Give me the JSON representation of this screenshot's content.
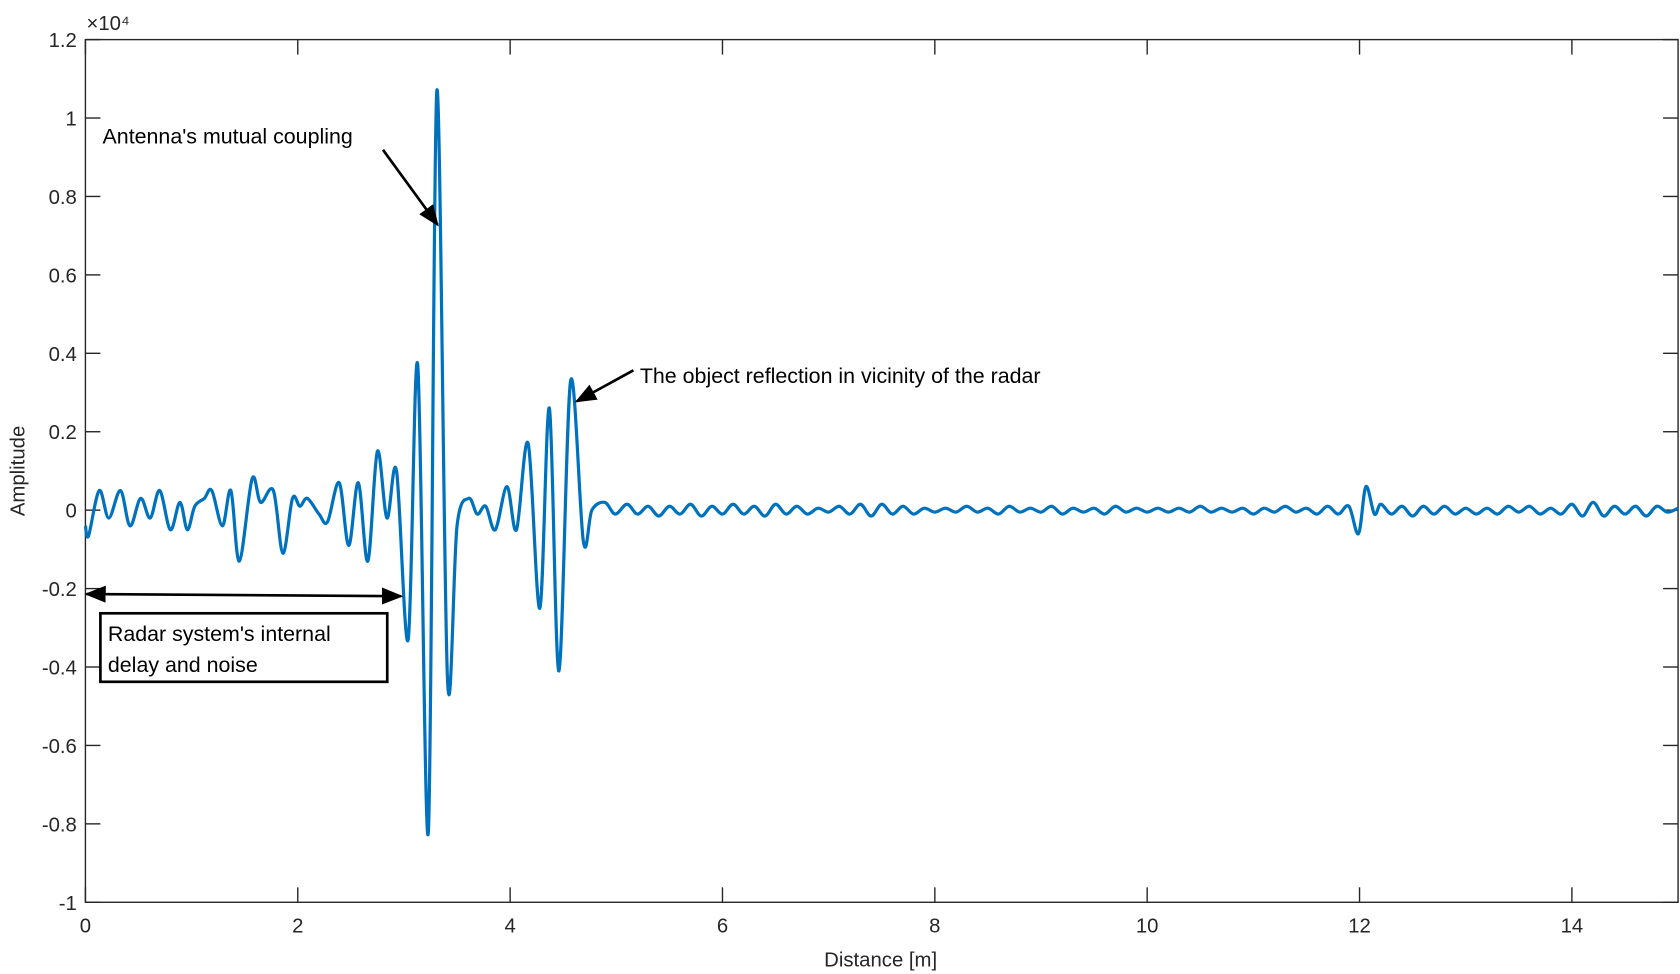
{
  "chart_data": {
    "type": "line",
    "xlabel": "Distance [m]",
    "ylabel": "Amplitude",
    "y_scale_label": "×10⁴",
    "xlim": [
      0,
      15
    ],
    "xticks": [
      0,
      2,
      4,
      6,
      8,
      10,
      12,
      14
    ],
    "ylim": [
      -1,
      1.2
    ],
    "yticks": [
      -1,
      -0.8,
      -0.6,
      -0.4,
      -0.2,
      0,
      0.2,
      0.4,
      0.6,
      0.8,
      1,
      1.2
    ],
    "grid": false,
    "annotations": [
      "Antenna's mutual coupling",
      "The object reflection in vicinity of the radar",
      [
        "Radar system's internal",
        "delay and noise"
      ]
    ],
    "series": [
      {
        "color": "#0072bd",
        "x": [
          0,
          0.03,
          0.13,
          0.22,
          0.33,
          0.42,
          0.52,
          0.61,
          0.7,
          0.8,
          0.89,
          0.96,
          1.03,
          1.12,
          1.19,
          1.29,
          1.37,
          1.45,
          1.57,
          1.65,
          1.77,
          1.86,
          1.95,
          2.02,
          2.09,
          2.2,
          2.28,
          2.39,
          2.48,
          2.57,
          2.66,
          2.75,
          2.84,
          2.93,
          3.04,
          3.13,
          3.23,
          3.31,
          3.41,
          3.5,
          3.61,
          3.69,
          3.77,
          3.86,
          3.97,
          4.06,
          4.17,
          4.28,
          4.37,
          4.46,
          4.57,
          4.69,
          4.77,
          4.89,
          4.99,
          5.1,
          5.2,
          5.3,
          5.4,
          5.5,
          5.6,
          5.7,
          5.8,
          5.9,
          6.0,
          6.1,
          6.2,
          6.3,
          6.4,
          6.5,
          6.6,
          6.7,
          6.8,
          6.9,
          7.0,
          7.1,
          7.2,
          7.3,
          7.4,
          7.5,
          7.6,
          7.7,
          7.8,
          7.9,
          8.0,
          8.1,
          8.2,
          8.3,
          8.4,
          8.5,
          8.6,
          8.7,
          8.8,
          8.9,
          9.0,
          9.1,
          9.2,
          9.3,
          9.4,
          9.5,
          9.6,
          9.7,
          9.8,
          9.9,
          10.0,
          10.1,
          10.2,
          10.3,
          10.4,
          10.5,
          10.6,
          10.7,
          10.8,
          10.9,
          11.0,
          11.1,
          11.2,
          11.3,
          11.4,
          11.5,
          11.6,
          11.7,
          11.8,
          11.9,
          11.99,
          12.06,
          12.14,
          12.2,
          12.3,
          12.4,
          12.5,
          12.6,
          12.7,
          12.8,
          12.9,
          13.0,
          13.1,
          13.2,
          13.3,
          13.4,
          13.5,
          13.6,
          13.7,
          13.8,
          13.9,
          14.0,
          14.1,
          14.2,
          14.3,
          14.4,
          14.5,
          14.6,
          14.7,
          14.8,
          14.9,
          15.0
        ],
        "values": [
          -0.04,
          -0.065,
          0.05,
          -0.02,
          0.05,
          -0.04,
          0.03,
          -0.02,
          0.05,
          -0.05,
          0.02,
          -0.05,
          0.01,
          0.03,
          0.05,
          -0.04,
          0.05,
          -0.13,
          0.08,
          0.02,
          0.05,
          -0.11,
          0.03,
          0.01,
          0.03,
          -0.01,
          -0.03,
          0.07,
          -0.09,
          0.07,
          -0.13,
          0.15,
          -0.02,
          0.1,
          -0.33,
          0.37,
          -0.82,
          1.07,
          -0.43,
          -0.04,
          0.03,
          -0.01,
          0.01,
          -0.05,
          0.06,
          -0.05,
          0.17,
          -0.25,
          0.26,
          -0.41,
          0.33,
          -0.08,
          0.0,
          0.02,
          -0.01,
          0.015,
          -0.01,
          0.01,
          -0.015,
          0.01,
          -0.01,
          0.015,
          -0.015,
          0.01,
          -0.01,
          0.015,
          -0.01,
          0.01,
          -0.015,
          0.015,
          -0.01,
          0.01,
          -0.01,
          0.005,
          -0.005,
          0.01,
          -0.01,
          0.015,
          -0.015,
          0.015,
          -0.01,
          0.01,
          -0.01,
          0.005,
          -0.005,
          0.005,
          -0.005,
          0.01,
          -0.005,
          0.005,
          -0.01,
          0.01,
          -0.005,
          0.005,
          -0.005,
          0.01,
          -0.01,
          0.005,
          -0.005,
          0.005,
          -0.01,
          0.01,
          -0.005,
          0.005,
          -0.005,
          0.005,
          -0.005,
          0.005,
          -0.005,
          0.01,
          -0.005,
          0.005,
          -0.005,
          0.005,
          -0.01,
          0.005,
          -0.005,
          0.01,
          -0.005,
          0.005,
          -0.01,
          0.01,
          -0.01,
          0.01,
          -0.06,
          0.06,
          -0.01,
          0.015,
          -0.01,
          0.01,
          -0.015,
          0.01,
          -0.01,
          0.01,
          -0.01,
          0.005,
          -0.01,
          0.005,
          -0.01,
          0.01,
          -0.005,
          0.01,
          -0.01,
          0.005,
          -0.01,
          0.015,
          -0.015,
          0.02,
          -0.015,
          0.01,
          -0.01,
          0.01,
          -0.015,
          0.01,
          -0.005,
          0.005
        ]
      }
    ]
  }
}
